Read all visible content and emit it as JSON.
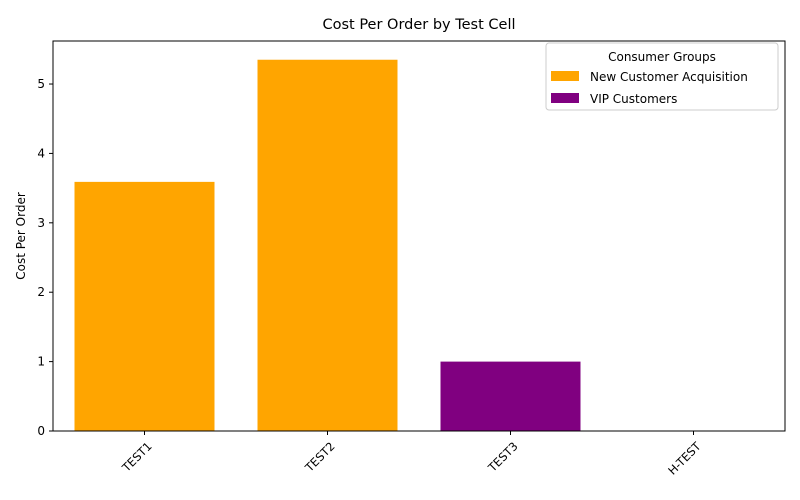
{
  "chart_data": {
    "type": "bar",
    "title": "Cost Per Order by Test Cell",
    "xlabel": "",
    "ylabel": "Cost Per Order",
    "categories": [
      "TEST1",
      "TEST2",
      "TEST3",
      "H-TEST"
    ],
    "values": [
      3.59,
      5.35,
      1.0,
      0
    ],
    "bar_groups": [
      "New Customer Acquisition",
      "New Customer Acquisition",
      "VIP Customers",
      "VIP Customers"
    ],
    "ylim": [
      0,
      5.62
    ],
    "yticks": [
      0,
      1,
      2,
      3,
      4,
      5
    ],
    "grid": false,
    "legend": {
      "title": "Consumer Groups",
      "position": "top-right",
      "entries": [
        {
          "label": "New Customer Acquisition",
          "color": "#FFA500"
        },
        {
          "label": "VIP Customers",
          "color": "#800080"
        }
      ]
    }
  }
}
